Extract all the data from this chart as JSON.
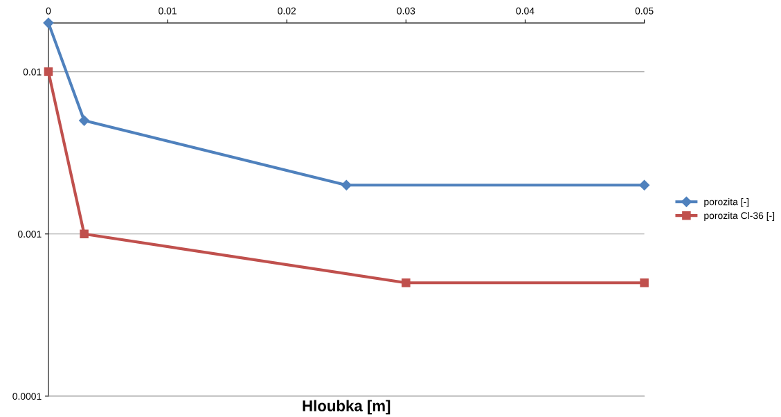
{
  "chart_data": {
    "type": "line",
    "xlabel": "Hloubka [m]",
    "log": "y",
    "grid": "y",
    "legend": "right",
    "line_style": "solid",
    "xlim": [
      0,
      0.05
    ],
    "xticks": [
      0,
      0.01,
      0.02,
      0.03,
      0.04,
      0.05
    ],
    "ylim": [
      0.0001,
      0.02
    ],
    "yticks": [
      0.0001,
      0.001,
      0.01
    ],
    "series": [
      {
        "name": "porozita [-]",
        "color": "#4f81bd",
        "marker": "diamond",
        "x": [
          0,
          0.003,
          0.025,
          0.05
        ],
        "values": [
          0.02,
          0.005,
          0.002,
          0.002
        ]
      },
      {
        "name": "porozita Cl-36 [-]",
        "color": "#c0504d",
        "marker": "square",
        "x": [
          0,
          0.003,
          0.03,
          0.05
        ],
        "values": [
          0.01,
          0.001,
          0.0005,
          0.0005
        ]
      }
    ]
  }
}
